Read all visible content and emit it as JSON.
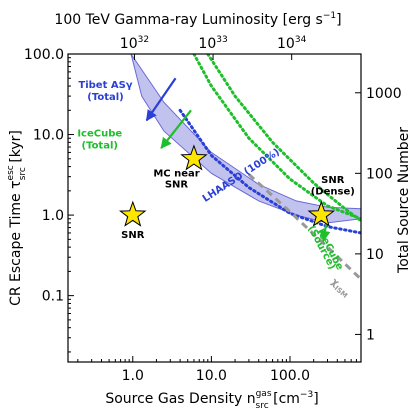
{
  "chart_data": {
    "type": "scatter",
    "xlabel": "Source Gas Density n",
    "xlabel_sym_sup": "gas",
    "xlabel_sym_sub": "src",
    "xlabel_unit": " [cm",
    "xlabel_unit_sup": "−3",
    "xlabel_unit_end": "]",
    "ylabel": "CR Escape Time τ",
    "ylabel_sym_sup": "esc",
    "ylabel_sym_sub": "src",
    "ylabel_unit": " [kyr]",
    "top_label": "100 TeV Gamma-ray Luminosity [erg s",
    "top_label_sup": "−1",
    "top_label_end": "]",
    "right_label": "Total Source Number",
    "xlim": [
      0.15,
      800
    ],
    "ylim": [
      0.015,
      100
    ],
    "x_ticks": [
      {
        "v": 1,
        "label": "1.0"
      },
      {
        "v": 10,
        "label": "10.0"
      },
      {
        "v": 100,
        "label": "100.0"
      }
    ],
    "y_ticks": [
      {
        "v": 0.1,
        "label": "0.1"
      },
      {
        "v": 1,
        "label": "1.0"
      },
      {
        "v": 10,
        "label": "10.0"
      },
      {
        "v": 100,
        "label": "100.0"
      }
    ],
    "top_ticks": [
      {
        "x": 1.05,
        "base": "10",
        "exp": "32"
      },
      {
        "x": 10.5,
        "base": "10",
        "exp": "33"
      },
      {
        "x": 105,
        "base": "10",
        "exp": "34"
      }
    ],
    "right_ticks": [
      {
        "y": 33,
        "label": "1000"
      },
      {
        "y": 3.3,
        "label": "100"
      },
      {
        "y": 0.33,
        "label": "10"
      },
      {
        "y": 0.033,
        "label": "1"
      }
    ],
    "band": {
      "name": "LHAASO (100%)",
      "color": "#8f8fe0",
      "upper": [
        [
          0.95,
          100
        ],
        [
          2.5,
          25
        ],
        [
          10,
          6
        ],
        [
          40,
          2.4
        ],
        [
          120,
          1.5
        ],
        [
          300,
          1.25
        ],
        [
          800,
          1.2
        ]
      ],
      "lower": [
        [
          800,
          0.9
        ],
        [
          300,
          0.8
        ],
        [
          120,
          1.0
        ],
        [
          40,
          1.5
        ],
        [
          10,
          3.3
        ],
        [
          2.5,
          11
        ],
        [
          1.3,
          30
        ],
        [
          0.95,
          100
        ]
      ]
    },
    "series": [
      {
        "name": "Tibet ASγ (Total)",
        "color": "#2a3fd6",
        "style": "dotted",
        "points": [
          [
            4,
            20
          ],
          [
            10,
            5.5
          ],
          [
            30,
            2.2
          ],
          [
            100,
            1.05
          ],
          [
            300,
            0.72
          ],
          [
            800,
            0.6
          ]
        ]
      },
      {
        "name": "IceCube (Total)",
        "color": "#1ebf2a",
        "style": "dotted",
        "points": [
          [
            6,
            100
          ],
          [
            10,
            40
          ],
          [
            30,
            9
          ],
          [
            100,
            2.8
          ],
          [
            300,
            1.3
          ],
          [
            800,
            0.9
          ]
        ]
      },
      {
        "name": "IceCube (Source)",
        "color": "#1ebf2a",
        "style": "dotted",
        "points": [
          [
            9,
            100
          ],
          [
            20,
            30
          ],
          [
            60,
            8
          ],
          [
            200,
            2.5
          ],
          [
            500,
            1.2
          ],
          [
            800,
            0.85
          ]
        ]
      },
      {
        "name": "χISM",
        "color": "#999999",
        "style": "dashed",
        "points": [
          [
            30,
            3.2
          ],
          [
            100,
            1.1
          ],
          [
            300,
            0.4
          ],
          [
            800,
            0.16
          ]
        ]
      }
    ],
    "points": [
      {
        "name": "SNR",
        "x": 1.0,
        "y": 1.0
      },
      {
        "name": "MC near SNR",
        "x": 6.0,
        "y": 5.0
      },
      {
        "name": "SNR (Dense)",
        "x": 250,
        "y": 1.0
      }
    ],
    "annotations": [
      {
        "text": "Tibet ASγ",
        "x": 0.45,
        "y": 38,
        "color": "#2a3fd6"
      },
      {
        "text": "(Total)",
        "x": 0.45,
        "y": 27,
        "color": "#2a3fd6"
      },
      {
        "text": "IceCube",
        "x": 0.38,
        "y": 9.5,
        "color": "#1ebf2a"
      },
      {
        "text": "(Total)",
        "x": 0.38,
        "y": 6.7,
        "color": "#1ebf2a"
      },
      {
        "text": "SNR",
        "x": 1.0,
        "y": 0.52,
        "color": "#000000"
      },
      {
        "text": "MC near",
        "x": 3.6,
        "y": 3.0,
        "color": "#000000"
      },
      {
        "text": "SNR",
        "x": 3.6,
        "y": 2.2,
        "color": "#000000"
      },
      {
        "text": "SNR",
        "x": 350,
        "y": 2.5,
        "color": "#000000"
      },
      {
        "text": "(Dense)",
        "x": 350,
        "y": 1.8,
        "color": "#000000"
      }
    ],
    "rotated_annotations": [
      {
        "text": "LHAASO (100%)",
        "x": 25,
        "y": 2.9,
        "angle": -33,
        "color": "#2a3fd6"
      },
      {
        "text": "IceCube",
        "x": 300,
        "y": 0.36,
        "angle": 62,
        "color": "#1ebf2a"
      },
      {
        "text": "(Source)",
        "x": 235,
        "y": 0.38,
        "angle": 62,
        "color": "#1ebf2a"
      },
      {
        "text": "χ",
        "sub": "ISM",
        "x": 420,
        "y": 0.12,
        "angle": 40,
        "color": "#999999"
      }
    ],
    "arrows": [
      {
        "color": "#2a3fd6",
        "from": [
          3.5,
          50
        ],
        "to": [
          1.5,
          15
        ]
      },
      {
        "color": "#1ebf2a",
        "from": [
          5.5,
          20
        ],
        "to": [
          2.3,
          6.8
        ]
      },
      {
        "color": "#1ebf2a",
        "from": [
          290,
          0.8
        ],
        "to": [
          265,
          0.48
        ]
      }
    ]
  }
}
